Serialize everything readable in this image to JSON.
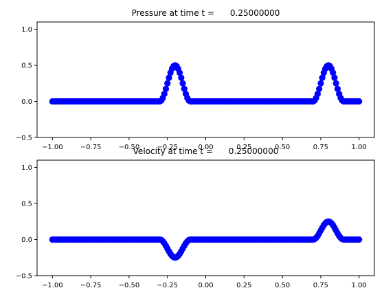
{
  "colors": {
    "marker": "#0000ff",
    "axis": "#000000",
    "background": "#ffffff"
  },
  "chart_data": [
    {
      "type": "scatter",
      "title": "Pressure at time t =      0.25000000",
      "xlabel": "",
      "ylabel": "",
      "xlim": [
        -1.1,
        1.1
      ],
      "ylim": [
        -0.5,
        1.1
      ],
      "xticks": [
        -1.0,
        -0.75,
        -0.5,
        -0.25,
        0.0,
        0.25,
        0.5,
        0.75,
        1.0
      ],
      "xtick_labels": [
        "−1.00",
        "−0.75",
        "−0.50",
        "−0.25",
        "0.00",
        "0.25",
        "0.50",
        "0.75",
        "1.00"
      ],
      "yticks": [
        -0.5,
        0.0,
        0.5,
        1.0
      ],
      "ytick_labels": [
        "−0.5",
        "0.0",
        "0.5",
        "1.0"
      ],
      "grid": false,
      "series": [
        {
          "marker": "circle",
          "x_range": [
            -1.0,
            1.0
          ],
          "num_points": 201,
          "baseline": 0.0,
          "pulses": [
            {
              "center": -0.2,
              "amplitude": 0.5,
              "halfwidth": 0.1
            },
            {
              "center": 0.8,
              "amplitude": 0.5,
              "halfwidth": 0.1
            }
          ]
        }
      ]
    },
    {
      "type": "scatter",
      "title": "Velocity at time t =      0.25000000",
      "xlabel": "",
      "ylabel": "",
      "xlim": [
        -1.1,
        1.1
      ],
      "ylim": [
        -0.5,
        1.1
      ],
      "xticks": [
        -1.0,
        -0.75,
        -0.5,
        -0.25,
        0.0,
        0.25,
        0.5,
        0.75,
        1.0
      ],
      "xtick_labels": [
        "−1.00",
        "−0.75",
        "−0.50",
        "−0.25",
        "0.00",
        "0.25",
        "0.50",
        "0.75",
        "1.00"
      ],
      "yticks": [
        -0.5,
        0.0,
        0.5,
        1.0
      ],
      "ytick_labels": [
        "−0.5",
        "0.0",
        "0.5",
        "1.0"
      ],
      "grid": false,
      "series": [
        {
          "marker": "circle",
          "x_range": [
            -1.0,
            1.0
          ],
          "num_points": 201,
          "baseline": 0.0,
          "pulses": [
            {
              "center": -0.2,
              "amplitude": -0.25,
              "halfwidth": 0.1
            },
            {
              "center": 0.8,
              "amplitude": 0.25,
              "halfwidth": 0.1
            }
          ]
        }
      ]
    }
  ]
}
